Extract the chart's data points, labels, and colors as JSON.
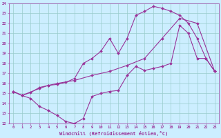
{
  "bg_color": "#cceeff",
  "line_color": "#993399",
  "grid_color": "#99cccc",
  "xlabel": "Windchill (Refroidissement éolien,°C)",
  "xlim": [
    -0.5,
    23.5
  ],
  "ylim": [
    12,
    24
  ],
  "xticks": [
    0,
    1,
    2,
    3,
    4,
    5,
    6,
    7,
    8,
    9,
    10,
    11,
    12,
    13,
    14,
    15,
    16,
    17,
    18,
    19,
    20,
    21,
    22,
    23
  ],
  "yticks": [
    12,
    13,
    14,
    15,
    16,
    17,
    18,
    19,
    20,
    21,
    22,
    23,
    24
  ],
  "curve1_x": [
    0,
    1,
    2,
    3,
    4,
    5,
    6,
    7,
    8,
    9,
    10,
    11,
    12,
    13,
    14,
    15,
    16,
    17,
    18,
    19,
    20,
    21,
    22,
    23
  ],
  "curve1_y": [
    15.2,
    14.8,
    14.5,
    13.7,
    13.3,
    12.8,
    12.2,
    12.0,
    12.5,
    14.7,
    15.0,
    15.2,
    15.3,
    16.8,
    17.7,
    17.3,
    17.5,
    17.7,
    18.0,
    21.8,
    21.0,
    18.5,
    18.5,
    17.2
  ],
  "curve2_x": [
    0,
    1,
    3,
    4,
    5,
    6,
    7,
    8,
    9,
    10,
    11,
    12,
    13,
    14,
    15,
    16,
    17,
    18,
    19,
    20,
    21,
    22,
    23
  ],
  "curve2_y": [
    15.2,
    14.8,
    15.5,
    15.8,
    15.9,
    16.1,
    16.5,
    18.0,
    18.5,
    19.2,
    20.5,
    19.0,
    20.5,
    22.8,
    23.2,
    23.7,
    23.5,
    23.2,
    22.8,
    22.0,
    20.5,
    18.5,
    17.2
  ],
  "curve3_x": [
    0,
    1,
    2,
    3,
    4,
    5,
    7,
    9,
    11,
    13,
    15,
    17,
    19,
    21,
    23
  ],
  "curve3_y": [
    15.2,
    14.8,
    15.1,
    15.6,
    15.8,
    16.0,
    16.3,
    16.8,
    17.2,
    17.8,
    18.5,
    20.5,
    22.5,
    22.0,
    17.2
  ]
}
